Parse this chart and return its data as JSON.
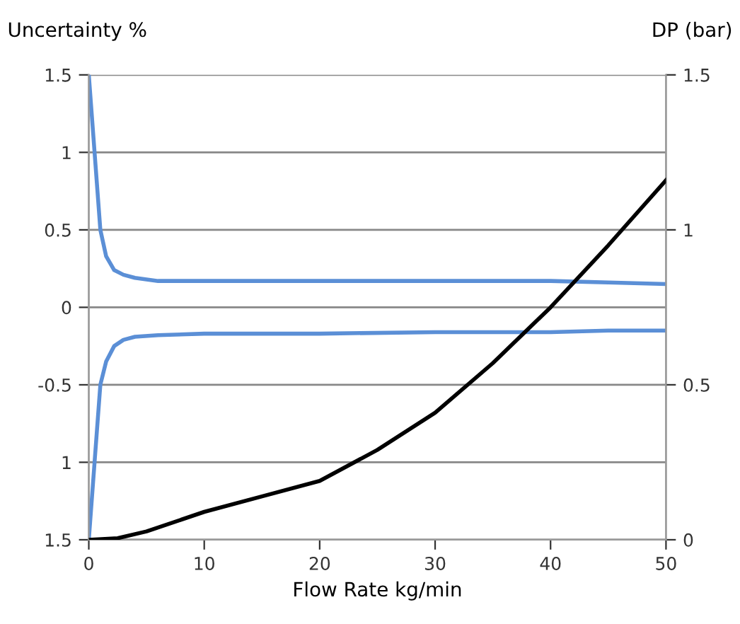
{
  "chart_data": {
    "type": "line",
    "xlabel": "Flow Rate kg/min",
    "ylabel": "Uncertainty %",
    "y2label": "DP (bar)",
    "xlim": [
      0,
      50
    ],
    "xticks": [
      0,
      10,
      20,
      30,
      40,
      50
    ],
    "ylim": [
      -1.5,
      1.5
    ],
    "yticks": [
      {
        "value": -1.5,
        "label": "1.5"
      },
      {
        "value": -1,
        "label": "1"
      },
      -0.5,
      0,
      0.5,
      1,
      1.5
    ],
    "y2lim": [
      0,
      1.5
    ],
    "y2ticks": [
      0,
      0.5,
      1,
      1.5
    ],
    "grid": "y",
    "legend": false,
    "marker": "none",
    "line_style": "solid",
    "series": [
      {
        "color": "#5b8fd6",
        "x": [
          0,
          0.5,
          1,
          1.5,
          2.2,
          3,
          4,
          6,
          10,
          20,
          30,
          40,
          45,
          50
        ],
        "values": [
          1.5,
          1.0,
          0.5,
          0.33,
          0.24,
          0.21,
          0.19,
          0.17,
          0.17,
          0.17,
          0.17,
          0.17,
          0.16,
          0.15
        ]
      },
      {
        "color": "#5b8fd6",
        "x": [
          0,
          0.5,
          1,
          1.5,
          2.2,
          3,
          4,
          6,
          10,
          20,
          30,
          40,
          45,
          50
        ],
        "values": [
          -1.5,
          -1.0,
          -0.5,
          -0.35,
          -0.25,
          -0.21,
          -0.19,
          -0.18,
          -0.17,
          -0.17,
          -0.16,
          -0.16,
          -0.15,
          -0.15
        ]
      },
      {
        "color": "#000000",
        "axis": "y2",
        "x": [
          0,
          2.5,
          5,
          10,
          15,
          20,
          25,
          30,
          35,
          40,
          45,
          50
        ],
        "values": [
          0,
          0.005,
          0.027,
          0.09,
          0.14,
          0.19,
          0.29,
          0.41,
          0.57,
          0.75,
          0.95,
          1.16
        ]
      }
    ]
  }
}
